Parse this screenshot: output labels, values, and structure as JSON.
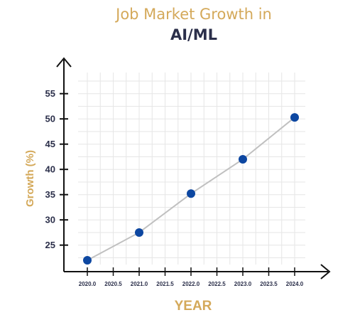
{
  "chart_data": {
    "type": "line",
    "title_line1": "Job Market Growth in",
    "title_line2": "AI/ML",
    "xlabel": "YEAR",
    "ylabel": "Growth (%)",
    "x": [
      2020.0,
      2021.0,
      2022.0,
      2023.0,
      2024.0
    ],
    "series": [
      {
        "values": [
          22.0,
          27.5,
          35.2,
          42.0,
          50.3
        ]
      }
    ],
    "xlim": [
      2020.0,
      2024.0
    ],
    "ylim": [
      21,
      58
    ],
    "xticks": [
      "2020.0",
      "2020.5",
      "2021.0",
      "2021.5",
      "2022.0",
      "2022.5",
      "2023.0",
      "2023.5",
      "2024.0"
    ],
    "yticks": [
      "25",
      "30",
      "35",
      "40",
      "45",
      "50",
      "55"
    ],
    "grid": true,
    "colors": {
      "line": "#c0c0c0",
      "marker": "#0d47a1",
      "grid": "#e6e6e6",
      "axis": "#111111",
      "title_accent": "#d4a95a",
      "title_dark": "#2b2f4a"
    }
  }
}
